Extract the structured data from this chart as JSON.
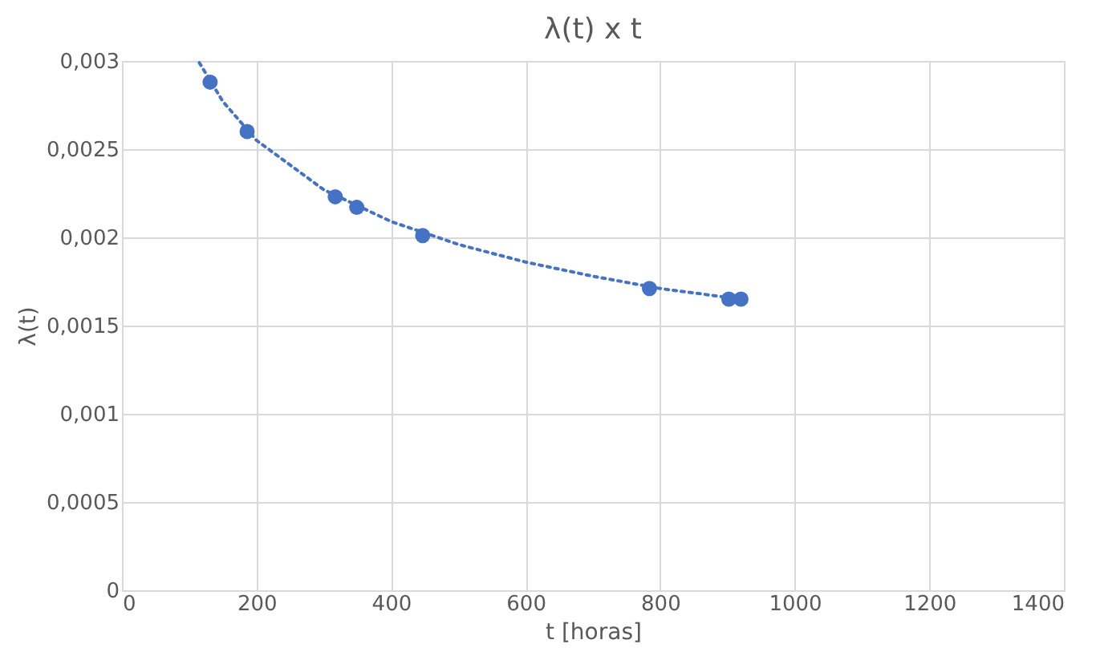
{
  "chart_data": {
    "type": "scatter",
    "title": "λ(t) x t",
    "xlabel": "t [horas]",
    "ylabel": "λ(t)",
    "xlim": [
      0,
      1400
    ],
    "xticks": [
      0,
      200,
      400,
      600,
      800,
      1000,
      1200,
      1400
    ],
    "ylim": [
      0,
      0.003
    ],
    "yticks": [
      {
        "value": 0,
        "label": "0"
      },
      {
        "value": 0.0005,
        "label": "0,0005"
      },
      {
        "value": 0.001,
        "label": "0,001"
      },
      {
        "value": 0.0015,
        "label": "0,0015"
      },
      {
        "value": 0.002,
        "label": "0,002"
      },
      {
        "value": 0.0025,
        "label": "0,0025"
      },
      {
        "value": 0.003,
        "label": "0,003"
      }
    ],
    "grid": true,
    "marker": "circle",
    "series": [
      {
        "color": "#4472c4",
        "x": [
          131,
          186,
          317,
          349,
          447,
          784,
          902,
          920
        ],
        "values": [
          0.00288,
          0.0026,
          0.00223,
          0.00217,
          0.00201,
          0.00171,
          0.00165,
          0.00165
        ]
      },
      {
        "type": "line",
        "color": "#4472c4",
        "line_style": "dotted",
        "marker": "none",
        "x": [
          115,
          150,
          200,
          300,
          400,
          500,
          600,
          700,
          800,
          920
        ],
        "values": [
          0.00299,
          0.00277,
          0.00255,
          0.00227,
          0.00209,
          0.00196,
          0.00186,
          0.00178,
          0.00171,
          0.00165
        ]
      }
    ]
  }
}
